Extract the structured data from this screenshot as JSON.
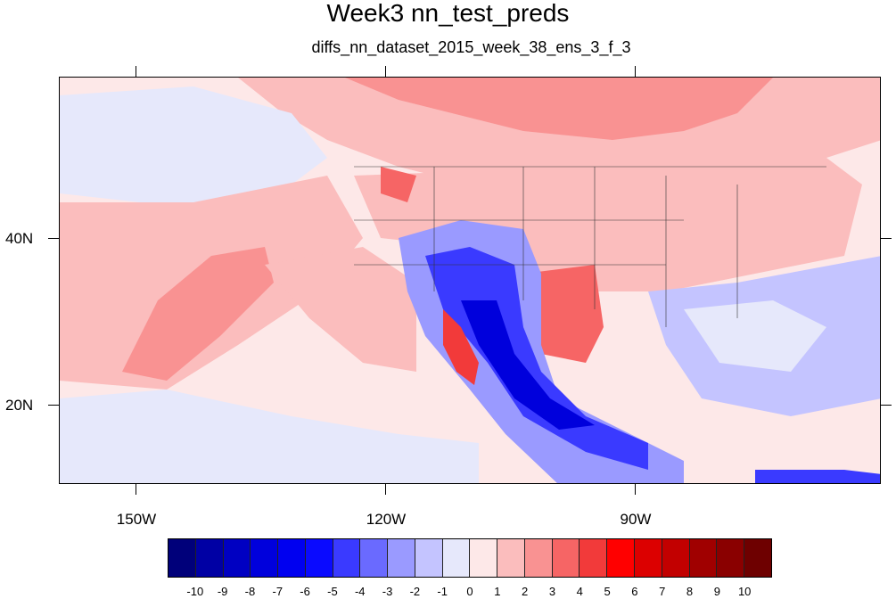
{
  "title": "Week3 nn_test_preds",
  "subtitle": "diffs_nn_dataset_2015_week_38_ens_3_f_3",
  "map": {
    "lat_labels": [
      "40N",
      "20N"
    ],
    "lon_labels": [
      "150W",
      "120W",
      "90W"
    ],
    "projection": "cylindrical equidistant",
    "region": "North Pacific / North America",
    "coastlines": true,
    "state_boundaries": true
  },
  "colorbar": {
    "labels": [
      "-10",
      "-9",
      "-8",
      "-7",
      "-6",
      "-5",
      "-4",
      "-3",
      "-2",
      "-1",
      "0",
      "1",
      "2",
      "3",
      "4",
      "5",
      "6",
      "7",
      "8",
      "9",
      "10"
    ],
    "colors": [
      "#00007a",
      "#0000a4",
      "#0000c2",
      "#0000dc",
      "#0000f0",
      "#0a0aff",
      "#3a3aff",
      "#6a6aff",
      "#9a9aff",
      "#c4c4ff",
      "#e6e8fb",
      "#fde8e8",
      "#fbbdbd",
      "#f99292",
      "#f66565",
      "#f23a3a",
      "#ff0000",
      "#dc0000",
      "#c20000",
      "#a00000",
      "#8a0000",
      "#6e0000"
    ]
  }
}
